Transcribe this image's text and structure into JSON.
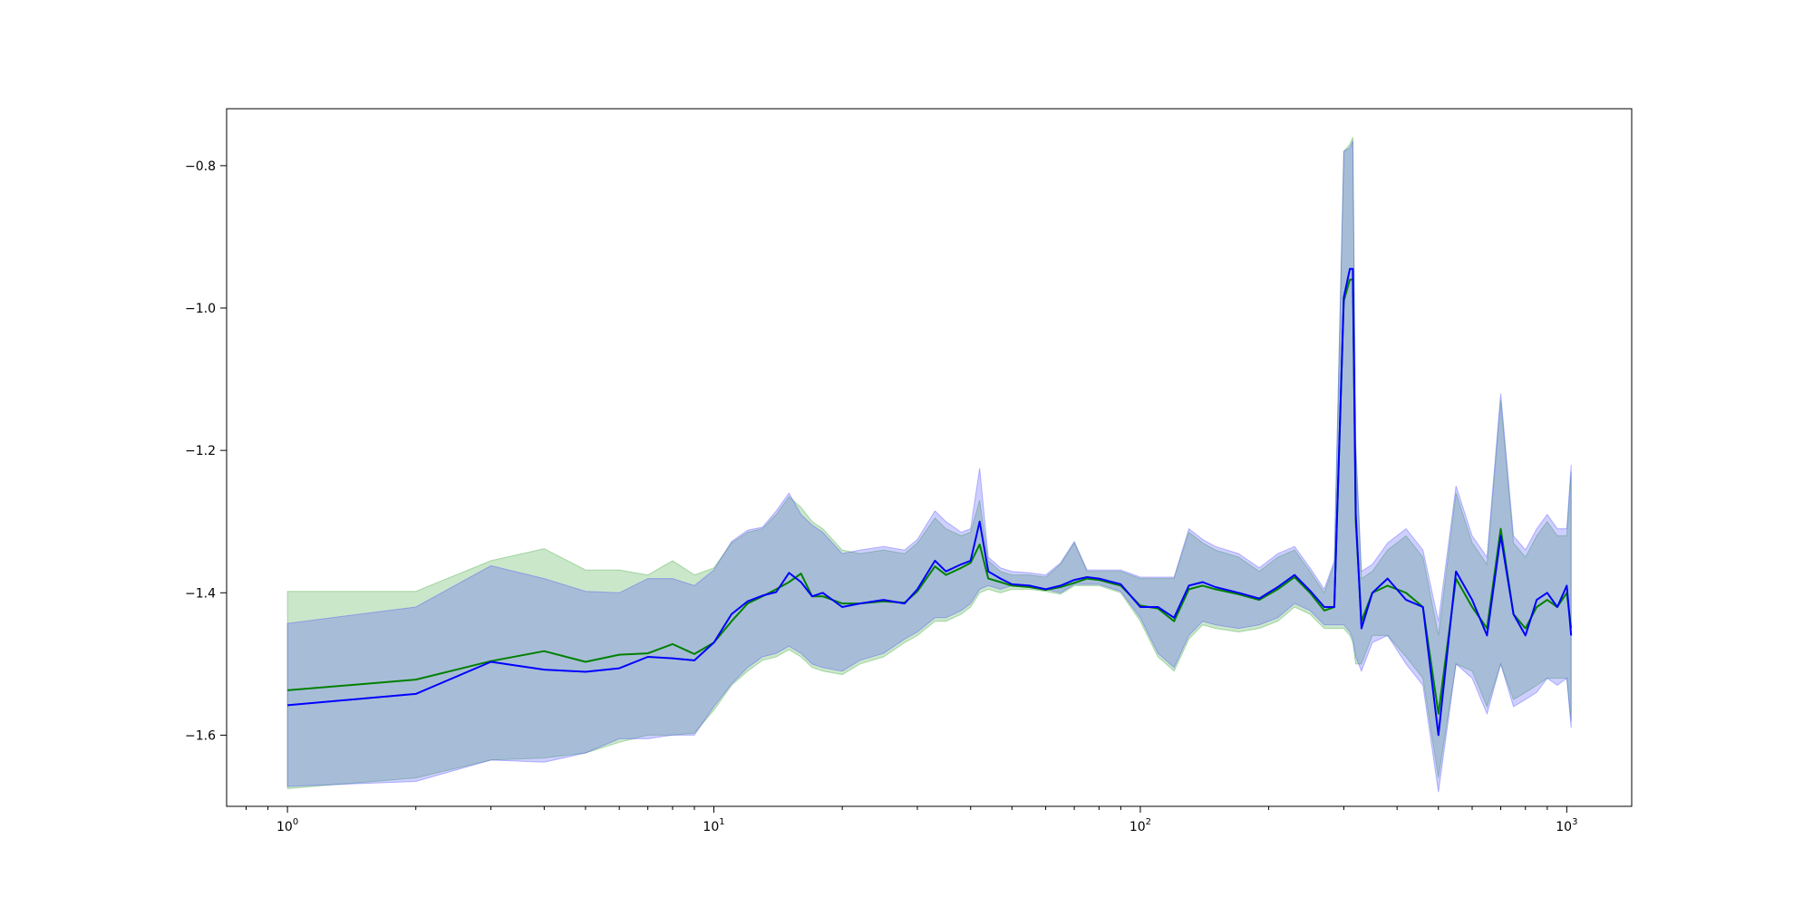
{
  "chart_data": {
    "type": "line",
    "title": "",
    "xlabel": "",
    "ylabel": "",
    "xscale": "log",
    "xlim": [
      0.72,
      1420
    ],
    "ylim": [
      -1.7,
      -0.72
    ],
    "grid": false,
    "xticks": [
      {
        "value": 1,
        "base": "10",
        "exp": "0"
      },
      {
        "value": 10,
        "base": "10",
        "exp": "1"
      },
      {
        "value": 100,
        "base": "10",
        "exp": "2"
      },
      {
        "value": 1000,
        "base": "10",
        "exp": "3"
      }
    ],
    "yticks": [
      {
        "value": -1.6,
        "label": "−1.6"
      },
      {
        "value": -1.4,
        "label": "−1.4"
      },
      {
        "value": -1.2,
        "label": "−1.2"
      },
      {
        "value": -1.0,
        "label": "−1.0"
      },
      {
        "value": -0.8,
        "label": "−0.8"
      }
    ],
    "series": [
      {
        "color": "#008000",
        "band_color": "#2ca02c",
        "band_opacity": 0.25,
        "x": [
          1,
          2,
          3,
          4,
          5,
          6,
          7,
          8,
          9,
          10,
          11,
          12,
          13,
          14,
          15,
          16,
          17,
          18,
          20,
          22,
          25,
          28,
          30,
          33,
          35,
          38,
          40,
          42,
          44,
          47,
          50,
          55,
          60,
          65,
          70,
          75,
          80,
          90,
          100,
          110,
          120,
          130,
          140,
          150,
          170,
          190,
          210,
          230,
          250,
          270,
          285,
          300,
          310,
          315,
          320,
          330,
          350,
          380,
          420,
          460,
          500,
          550,
          600,
          650,
          700,
          750,
          800,
          850,
          900,
          950,
          1000,
          1024
        ],
        "y": [
          -1.537,
          -1.522,
          -1.496,
          -1.482,
          -1.497,
          -1.487,
          -1.485,
          -1.472,
          -1.486,
          -1.47,
          -1.44,
          -1.415,
          -1.405,
          -1.395,
          -1.385,
          -1.373,
          -1.405,
          -1.405,
          -1.415,
          -1.415,
          -1.412,
          -1.414,
          -1.398,
          -1.363,
          -1.375,
          -1.365,
          -1.358,
          -1.332,
          -1.38,
          -1.385,
          -1.39,
          -1.392,
          -1.396,
          -1.392,
          -1.386,
          -1.38,
          -1.382,
          -1.39,
          -1.418,
          -1.422,
          -1.44,
          -1.395,
          -1.39,
          -1.395,
          -1.402,
          -1.41,
          -1.395,
          -1.378,
          -1.4,
          -1.425,
          -1.42,
          -0.99,
          -0.96,
          -0.96,
          -1.3,
          -1.44,
          -1.4,
          -1.39,
          -1.4,
          -1.42,
          -1.57,
          -1.38,
          -1.42,
          -1.45,
          -1.31,
          -1.43,
          -1.45,
          -1.42,
          -1.41,
          -1.42,
          -1.4,
          -1.45
        ],
        "lower": [
          -1.675,
          -1.66,
          -1.635,
          -1.632,
          -1.625,
          -1.61,
          -1.6,
          -1.6,
          -1.597,
          -1.565,
          -1.53,
          -1.51,
          -1.495,
          -1.49,
          -1.48,
          -1.49,
          -1.505,
          -1.51,
          -1.515,
          -1.5,
          -1.49,
          -1.47,
          -1.46,
          -1.44,
          -1.44,
          -1.43,
          -1.42,
          -1.4,
          -1.395,
          -1.4,
          -1.395,
          -1.395,
          -1.398,
          -1.402,
          -1.39,
          -1.39,
          -1.39,
          -1.4,
          -1.44,
          -1.49,
          -1.51,
          -1.465,
          -1.445,
          -1.45,
          -1.455,
          -1.45,
          -1.44,
          -1.42,
          -1.43,
          -1.45,
          -1.45,
          -1.45,
          -1.46,
          -1.47,
          -1.5,
          -1.5,
          -1.46,
          -1.46,
          -1.49,
          -1.52,
          -1.66,
          -1.5,
          -1.51,
          -1.56,
          -1.5,
          -1.55,
          -1.54,
          -1.53,
          -1.52,
          -1.52,
          -1.52,
          -1.58
        ],
        "upper": [
          -1.398,
          -1.398,
          -1.355,
          -1.338,
          -1.368,
          -1.368,
          -1.375,
          -1.355,
          -1.375,
          -1.365,
          -1.33,
          -1.315,
          -1.31,
          -1.29,
          -1.265,
          -1.28,
          -1.3,
          -1.31,
          -1.34,
          -1.345,
          -1.34,
          -1.345,
          -1.33,
          -1.295,
          -1.31,
          -1.32,
          -1.315,
          -1.27,
          -1.355,
          -1.37,
          -1.375,
          -1.375,
          -1.378,
          -1.36,
          -1.33,
          -1.37,
          -1.37,
          -1.37,
          -1.38,
          -1.38,
          -1.38,
          -1.315,
          -1.33,
          -1.34,
          -1.35,
          -1.37,
          -1.35,
          -1.34,
          -1.37,
          -1.4,
          -1.36,
          -0.78,
          -0.77,
          -0.76,
          -1.2,
          -1.38,
          -1.37,
          -1.34,
          -1.32,
          -1.35,
          -1.46,
          -1.26,
          -1.33,
          -1.36,
          -1.13,
          -1.33,
          -1.35,
          -1.32,
          -1.3,
          -1.32,
          -1.32,
          -1.23
        ]
      },
      {
        "color": "#0000ff",
        "band_color": "#4040ff",
        "band_opacity": 0.25,
        "x": [
          1,
          2,
          3,
          4,
          5,
          6,
          7,
          8,
          9,
          10,
          11,
          12,
          13,
          14,
          15,
          16,
          17,
          18,
          20,
          22,
          25,
          28,
          30,
          33,
          35,
          38,
          40,
          42,
          44,
          47,
          50,
          55,
          60,
          65,
          70,
          75,
          80,
          90,
          100,
          110,
          120,
          130,
          140,
          150,
          170,
          190,
          210,
          230,
          250,
          270,
          285,
          300,
          310,
          315,
          320,
          330,
          350,
          380,
          420,
          460,
          500,
          550,
          600,
          650,
          700,
          750,
          800,
          850,
          900,
          950,
          1000,
          1024
        ],
        "y": [
          -1.558,
          -1.542,
          -1.497,
          -1.508,
          -1.511,
          -1.506,
          -1.49,
          -1.492,
          -1.495,
          -1.47,
          -1.43,
          -1.412,
          -1.404,
          -1.399,
          -1.372,
          -1.385,
          -1.405,
          -1.4,
          -1.42,
          -1.415,
          -1.41,
          -1.415,
          -1.395,
          -1.355,
          -1.37,
          -1.36,
          -1.355,
          -1.3,
          -1.37,
          -1.38,
          -1.388,
          -1.39,
          -1.395,
          -1.39,
          -1.382,
          -1.378,
          -1.38,
          -1.388,
          -1.42,
          -1.42,
          -1.435,
          -1.39,
          -1.385,
          -1.392,
          -1.4,
          -1.408,
          -1.392,
          -1.375,
          -1.397,
          -1.42,
          -1.42,
          -0.985,
          -0.945,
          -0.945,
          -1.29,
          -1.45,
          -1.4,
          -1.38,
          -1.41,
          -1.42,
          -1.6,
          -1.37,
          -1.41,
          -1.46,
          -1.32,
          -1.43,
          -1.46,
          -1.41,
          -1.4,
          -1.42,
          -1.39,
          -1.46
        ],
        "lower": [
          -1.672,
          -1.665,
          -1.635,
          -1.638,
          -1.625,
          -1.605,
          -1.605,
          -1.6,
          -1.6,
          -1.56,
          -1.528,
          -1.505,
          -1.49,
          -1.485,
          -1.475,
          -1.485,
          -1.5,
          -1.505,
          -1.51,
          -1.495,
          -1.485,
          -1.465,
          -1.455,
          -1.435,
          -1.435,
          -1.425,
          -1.415,
          -1.395,
          -1.39,
          -1.395,
          -1.39,
          -1.39,
          -1.395,
          -1.4,
          -1.388,
          -1.388,
          -1.388,
          -1.398,
          -1.435,
          -1.485,
          -1.505,
          -1.46,
          -1.44,
          -1.445,
          -1.45,
          -1.445,
          -1.435,
          -1.415,
          -1.425,
          -1.445,
          -1.445,
          -1.445,
          -1.455,
          -1.465,
          -1.49,
          -1.51,
          -1.47,
          -1.46,
          -1.5,
          -1.53,
          -1.68,
          -1.5,
          -1.52,
          -1.57,
          -1.5,
          -1.56,
          -1.55,
          -1.54,
          -1.52,
          -1.53,
          -1.52,
          -1.59
        ],
        "upper": [
          -1.443,
          -1.42,
          -1.362,
          -1.38,
          -1.398,
          -1.4,
          -1.38,
          -1.38,
          -1.39,
          -1.368,
          -1.328,
          -1.312,
          -1.308,
          -1.285,
          -1.26,
          -1.29,
          -1.305,
          -1.315,
          -1.345,
          -1.34,
          -1.335,
          -1.34,
          -1.325,
          -1.285,
          -1.3,
          -1.315,
          -1.31,
          -1.225,
          -1.35,
          -1.365,
          -1.37,
          -1.372,
          -1.375,
          -1.358,
          -1.328,
          -1.368,
          -1.368,
          -1.368,
          -1.378,
          -1.378,
          -1.378,
          -1.31,
          -1.325,
          -1.335,
          -1.345,
          -1.365,
          -1.345,
          -1.335,
          -1.365,
          -1.395,
          -1.355,
          -0.78,
          -0.775,
          -0.765,
          -1.19,
          -1.37,
          -1.36,
          -1.33,
          -1.31,
          -1.34,
          -1.44,
          -1.25,
          -1.32,
          -1.35,
          -1.12,
          -1.32,
          -1.34,
          -1.31,
          -1.29,
          -1.31,
          -1.31,
          -1.22
        ]
      }
    ]
  }
}
